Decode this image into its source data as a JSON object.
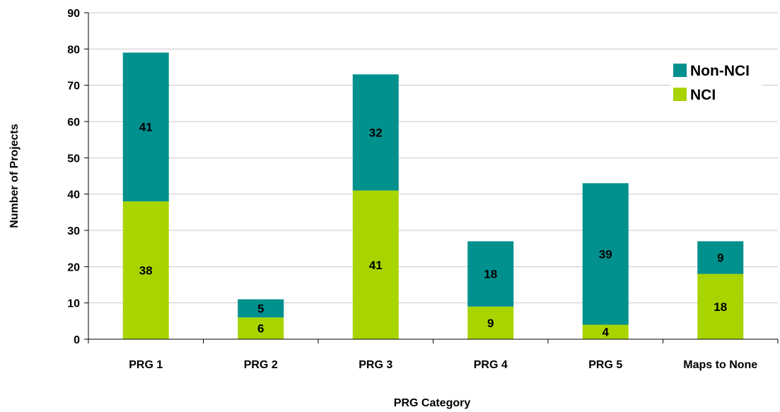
{
  "chart_data": {
    "type": "bar",
    "stacked": true,
    "categories": [
      "PRG 1",
      "PRG 2",
      "PRG 3",
      "PRG 4",
      "PRG 5",
      "Maps to None"
    ],
    "series": [
      {
        "name": "NCI",
        "color": "#a8d400",
        "values": [
          38,
          6,
          41,
          9,
          4,
          18
        ]
      },
      {
        "name": "Non-NCI",
        "color": "#00908e",
        "values": [
          41,
          5,
          32,
          18,
          39,
          9
        ]
      }
    ],
    "title": "",
    "xlabel": "PRG Category",
    "ylabel": "Number of Projects",
    "ylim": [
      0,
      90
    ],
    "yticks": [
      0,
      10,
      20,
      30,
      40,
      50,
      60,
      70,
      80,
      90
    ],
    "grid": true,
    "legend": {
      "placement": "top-right",
      "order": [
        "Non-NCI",
        "NCI"
      ]
    }
  }
}
